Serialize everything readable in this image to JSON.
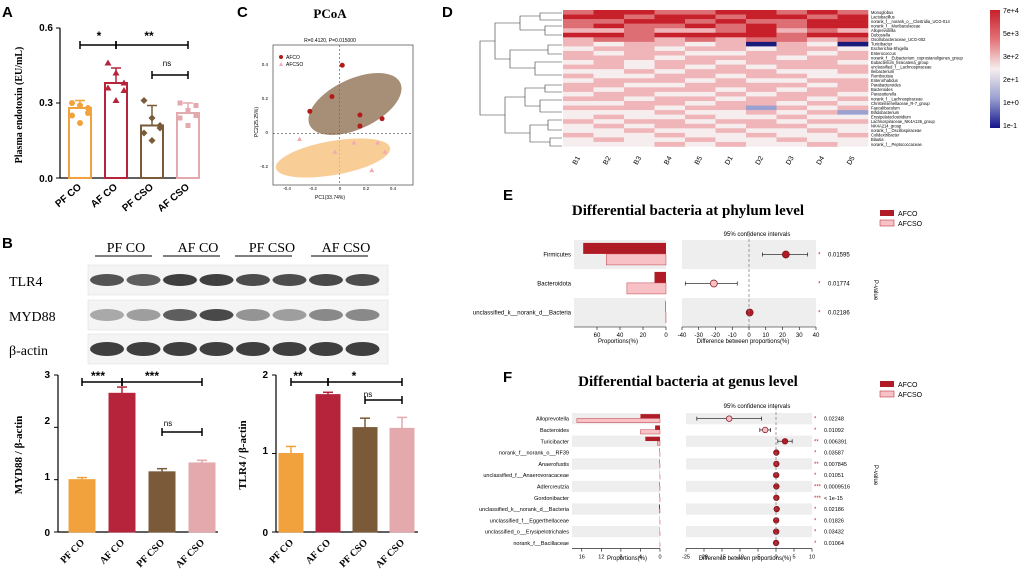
{
  "panel_letters": [
    "A",
    "B",
    "C",
    "D",
    "E",
    "F"
  ],
  "colors": {
    "pfco": "#f2a23c",
    "afco": "#b5243a",
    "pfcso": "#7a5a38",
    "afcso": "#e3a9ad",
    "red_dot": "#b31b1b",
    "pink": "#f3aab2",
    "heat_high": "#c8202b",
    "heat_low": "#14148c"
  },
  "chart_data": [
    {
      "id": "A",
      "type": "bar",
      "ylabel": "Plasma endotoxin (EU/mL)",
      "categories": [
        "PF CO",
        "AF CO",
        "PF CSO",
        "AF CSO"
      ],
      "values": [
        0.28,
        0.38,
        0.21,
        0.26
      ],
      "errors": [
        0.03,
        0.06,
        0.08,
        0.04
      ],
      "points": [
        [
          0.3,
          0.29,
          0.26,
          0.25,
          0.22,
          0.28
        ],
        [
          0.46,
          0.42,
          0.38,
          0.36,
          0.31,
          0.35
        ],
        [
          0.31,
          0.24,
          0.2,
          0.18,
          0.15,
          0.21
        ],
        [
          0.3,
          0.27,
          0.25,
          0.24,
          0.21,
          0.29
        ]
      ],
      "ylim": [
        0,
        0.6
      ],
      "yticks": [
        "0.0",
        "0.3",
        "0.6"
      ],
      "sig": [
        {
          "from": 0,
          "to": 1,
          "label": "*"
        },
        {
          "from": 1,
          "to": 3,
          "label": "**"
        },
        {
          "from": 2,
          "to": 3,
          "label": "ns"
        }
      ]
    },
    {
      "id": "B1",
      "type": "bar",
      "ylabel": "MYD88 / β-actin",
      "categories": [
        "PF CO",
        "AF CO",
        "PF CSO",
        "AF CSO"
      ],
      "values": [
        1.0,
        2.65,
        1.15,
        1.32
      ],
      "errors": [
        0.04,
        0.12,
        0.06,
        0.05
      ],
      "ylim": [
        0,
        3
      ],
      "yticks": [
        "0",
        "1",
        "2",
        "3"
      ],
      "sig": [
        {
          "from": 0,
          "to": 1,
          "label": "***"
        },
        {
          "from": 1,
          "to": 3,
          "label": "***"
        },
        {
          "from": 2,
          "to": 3,
          "label": "ns"
        }
      ]
    },
    {
      "id": "B2",
      "type": "bar",
      "ylabel": "TLR4 / β-actin",
      "categories": [
        "PF CO",
        "AF CO",
        "PF CSO",
        "AF CSO"
      ],
      "values": [
        1.0,
        1.75,
        1.33,
        1.32
      ],
      "errors": [
        0.09,
        0.03,
        0.12,
        0.14
      ],
      "ylim": [
        0,
        2
      ],
      "yticks": [
        "0",
        "1",
        "2"
      ],
      "sig": [
        {
          "from": 0,
          "to": 1,
          "label": "**"
        },
        {
          "from": 1,
          "to": 3,
          "label": "*"
        },
        {
          "from": 2,
          "to": 3,
          "label": "ns"
        }
      ]
    },
    {
      "id": "C",
      "type": "scatter",
      "title": "PCoA",
      "subtitle": "R=0.4120, P=0.015000",
      "xlabel": "PC1(33.74%)",
      "ylabel": "PC2(25.25%)",
      "xlim": [
        -0.45,
        0.5
      ],
      "ylim": [
        -0.28,
        0.48
      ],
      "xticks": [
        "-0.4",
        "-0.2",
        "0",
        "0.2",
        "0.4"
      ],
      "yticks": [
        "0.4",
        "0.2",
        "0",
        "-0.2"
      ],
      "series": [
        {
          "name": "AFCO",
          "x": [
            -0.2,
            -0.05,
            0.02,
            0.14,
            0.14,
            0.29
          ],
          "y": [
            0.12,
            0.2,
            0.37,
            0.1,
            0.04,
            0.08
          ]
        },
        {
          "name": "AFCSO",
          "x": [
            -0.27,
            -0.03,
            0.1,
            0.22,
            0.26,
            0.31
          ],
          "y": [
            -0.03,
            -0.1,
            -0.05,
            -0.2,
            -0.05,
            -0.1
          ]
        }
      ]
    },
    {
      "id": "D",
      "type": "heatmap",
      "columns": [
        "B1",
        "B2",
        "B3",
        "B4",
        "B5",
        "D1",
        "D2",
        "D3",
        "D4",
        "D5"
      ],
      "rows": [
        "Monoglobus",
        "Lactobacillus",
        "norank_f__norank_o__Clostridia_UCG-014",
        "norank_f__Muribaculaceae",
        "Alloprevotella",
        "Dubosiella",
        "Oscillobacteraceae_UCG-002",
        "Turicibacter",
        "Escherichia-Shigella",
        "Enterococcus",
        "norank_f__Eubacterium_coprostanoligenes_group",
        "Eubacterium_fissicatena_group",
        "unclassified_f__Lachnospiraceae",
        "Ileibacterium",
        "Romboutsia",
        "Enterorhabdus",
        "Parabacteroides",
        "Bacteroides",
        "Parasutterella",
        "norank_f__Lachnospiraceae",
        "Christensenellaceae_R-7_group",
        "Faecalibaculum",
        "Bifidobacterium",
        "Erysipelatoclostridium",
        "Lachnospiraceae_NK4A136_group",
        "NK4A214_group",
        "norank_f__Oscillospiraceae",
        "Colidextribacter",
        "Blautia",
        "norank_f__Peptococcaceae"
      ],
      "legend": [
        "7e+4",
        "5e+3",
        "3e+2",
        "2e+1",
        "1e+0",
        "1e-1"
      ],
      "values": [
        [
          4,
          5,
          5,
          4,
          4,
          5,
          5,
          4,
          5,
          4
        ],
        [
          5,
          5,
          4,
          5,
          5,
          4,
          5,
          5,
          4,
          5
        ],
        [
          4,
          4,
          5,
          5,
          4,
          5,
          4,
          4,
          5,
          5
        ],
        [
          4,
          5,
          4,
          4,
          5,
          4,
          5,
          4,
          5,
          5
        ],
        [
          3,
          3,
          4,
          3,
          3,
          4,
          5,
          3,
          4,
          3
        ],
        [
          5,
          5,
          4,
          5,
          5,
          5,
          5,
          4,
          5,
          5
        ],
        [
          3,
          4,
          4,
          3,
          4,
          3,
          4,
          4,
          3,
          4
        ],
        [
          3,
          2,
          3,
          3,
          2,
          3,
          0,
          3,
          2,
          0
        ],
        [
          2,
          3,
          3,
          2,
          3,
          3,
          2,
          3,
          3,
          2
        ],
        [
          3,
          2,
          3,
          3,
          2,
          2,
          3,
          3,
          2,
          3
        ],
        [
          3,
          3,
          3,
          2,
          3,
          3,
          3,
          2,
          3,
          3
        ],
        [
          2,
          3,
          2,
          3,
          3,
          2,
          3,
          3,
          3,
          2
        ],
        [
          3,
          3,
          2,
          3,
          2,
          3,
          2,
          3,
          3,
          3
        ],
        [
          2,
          2,
          3,
          2,
          3,
          3,
          3,
          2,
          2,
          3
        ],
        [
          3,
          2,
          2,
          3,
          3,
          2,
          3,
          3,
          2,
          2
        ],
        [
          2,
          3,
          3,
          3,
          2,
          3,
          2,
          2,
          3,
          3
        ],
        [
          3,
          3,
          2,
          2,
          3,
          3,
          3,
          3,
          2,
          3
        ],
        [
          3,
          2,
          3,
          3,
          3,
          2,
          3,
          2,
          3,
          3
        ],
        [
          2,
          3,
          3,
          2,
          2,
          3,
          2,
          3,
          3,
          2
        ],
        [
          3,
          3,
          2,
          3,
          3,
          2,
          3,
          3,
          2,
          3
        ],
        [
          2,
          2,
          3,
          3,
          2,
          3,
          3,
          2,
          3,
          2
        ],
        [
          3,
          3,
          3,
          2,
          3,
          3,
          1,
          3,
          2,
          3
        ],
        [
          2,
          2,
          2,
          3,
          2,
          2,
          3,
          2,
          3,
          1
        ],
        [
          2,
          3,
          2,
          2,
          3,
          2,
          2,
          3,
          2,
          2
        ],
        [
          3,
          2,
          3,
          3,
          2,
          3,
          3,
          2,
          3,
          3
        ],
        [
          2,
          3,
          2,
          3,
          3,
          2,
          3,
          3,
          2,
          2
        ],
        [
          2,
          2,
          3,
          2,
          2,
          3,
          2,
          2,
          3,
          2
        ],
        [
          3,
          2,
          2,
          3,
          2,
          2,
          3,
          2,
          2,
          3
        ],
        [
          2,
          3,
          2,
          2,
          3,
          2,
          2,
          3,
          2,
          2
        ],
        [
          2,
          2,
          2,
          3,
          2,
          3,
          2,
          2,
          3,
          2
        ]
      ]
    },
    {
      "id": "E",
      "type": "bar",
      "title": "Differential bacteria at phylum level",
      "ci_title": "95% confidence intervals",
      "xlabel_left": "Proportions(%)",
      "xlabel_right": "Difference between proportions(%)",
      "pvalue_label": "P-value",
      "legend": [
        "AFCO",
        "AFCSO"
      ],
      "taxa": [
        "Firmicutes",
        "Bacteroidota",
        "unclassified_k__norank_d__Bacteria"
      ],
      "afco": [
        72,
        10,
        0.5
      ],
      "afcso": [
        52,
        34,
        0.1
      ],
      "diff": [
        22,
        -21,
        0.4
      ],
      "ci_low": [
        8,
        -38,
        0.1
      ],
      "ci_high": [
        35,
        -7,
        0.7
      ],
      "pvalues": [
        "0.01595",
        "0.01774",
        "0.02186"
      ],
      "stars": [
        "*",
        "*",
        "*"
      ],
      "left_ticks": [
        "0",
        "20",
        "40",
        "60"
      ],
      "left_max": 80,
      "right_ticks": [
        "-40",
        "-30",
        "-20",
        "-10",
        "0",
        "10",
        "20",
        "30",
        "40"
      ],
      "right_range": [
        -40,
        40
      ]
    },
    {
      "id": "F",
      "type": "bar",
      "title": "Differential bacteria at genus level",
      "ci_title": "95% confidence intervals",
      "xlabel_left": "Proportions(%)",
      "xlabel_right": "Difference between proportions(%)",
      "pvalue_label": "P-value",
      "legend": [
        "AFCO",
        "AFCSO"
      ],
      "taxa": [
        "Alloprevotella",
        "Bacteroides",
        "Turicibacter",
        "norank_f__norank_o__RF39",
        "Anaerofustis",
        "unclassified_f__Anaerovoracaceae",
        "Adlercreutzia",
        "Gordonibacter",
        "unclassified_k__norank_d__Bacteria",
        "unclassified_f__Eggerthellaceae",
        "unclassified_o__Erysipelotrichales",
        "norank_f__Bacillaceae"
      ],
      "afco": [
        4,
        1,
        3,
        0.1,
        0.1,
        0.05,
        0.1,
        0.1,
        0.2,
        0.05,
        0.05,
        0.02
      ],
      "afcso": [
        17,
        4,
        0.5,
        0.02,
        0.02,
        0.01,
        0.02,
        0.02,
        0.05,
        0.01,
        0.01,
        0.005
      ],
      "diff": [
        -13,
        -3,
        2.5,
        0.1,
        0.1,
        0.05,
        0.1,
        0.1,
        0.2,
        0.05,
        0.05,
        0.02
      ],
      "ci_low": [
        -22,
        -4.5,
        0.5,
        0.05,
        0.05,
        0.02,
        0.05,
        0.05,
        0.1,
        0.02,
        0.02,
        0.01
      ],
      "ci_high": [
        -4,
        -1.5,
        4.5,
        0.15,
        0.15,
        0.08,
        0.15,
        0.15,
        0.3,
        0.08,
        0.08,
        0.03
      ],
      "pvalues": [
        "0.02248",
        "0.01092",
        "0.006391",
        "0.03587",
        "0.007845",
        "0.01051",
        "0.0009516",
        "< 1e-15",
        "0.02186",
        "0.01826",
        "0.03432",
        "0.01064"
      ],
      "stars": [
        "*",
        "*",
        "**",
        "*",
        "**",
        "*",
        "***",
        "***",
        "*",
        "*",
        "*",
        "*"
      ],
      "left_ticks": [
        "0",
        "4",
        "8",
        "12",
        "16"
      ],
      "left_max": 18,
      "right_ticks": [
        "-25",
        "-20",
        "-15",
        "-10",
        "-5",
        "0",
        "5",
        "10"
      ],
      "right_range": [
        -25,
        10
      ]
    }
  ],
  "blot": {
    "groups": [
      "PF CO",
      "AF CO",
      "PF CSO",
      "AF CSO"
    ],
    "rows": [
      "TLR4",
      "MYD88",
      "β-actin"
    ]
  }
}
